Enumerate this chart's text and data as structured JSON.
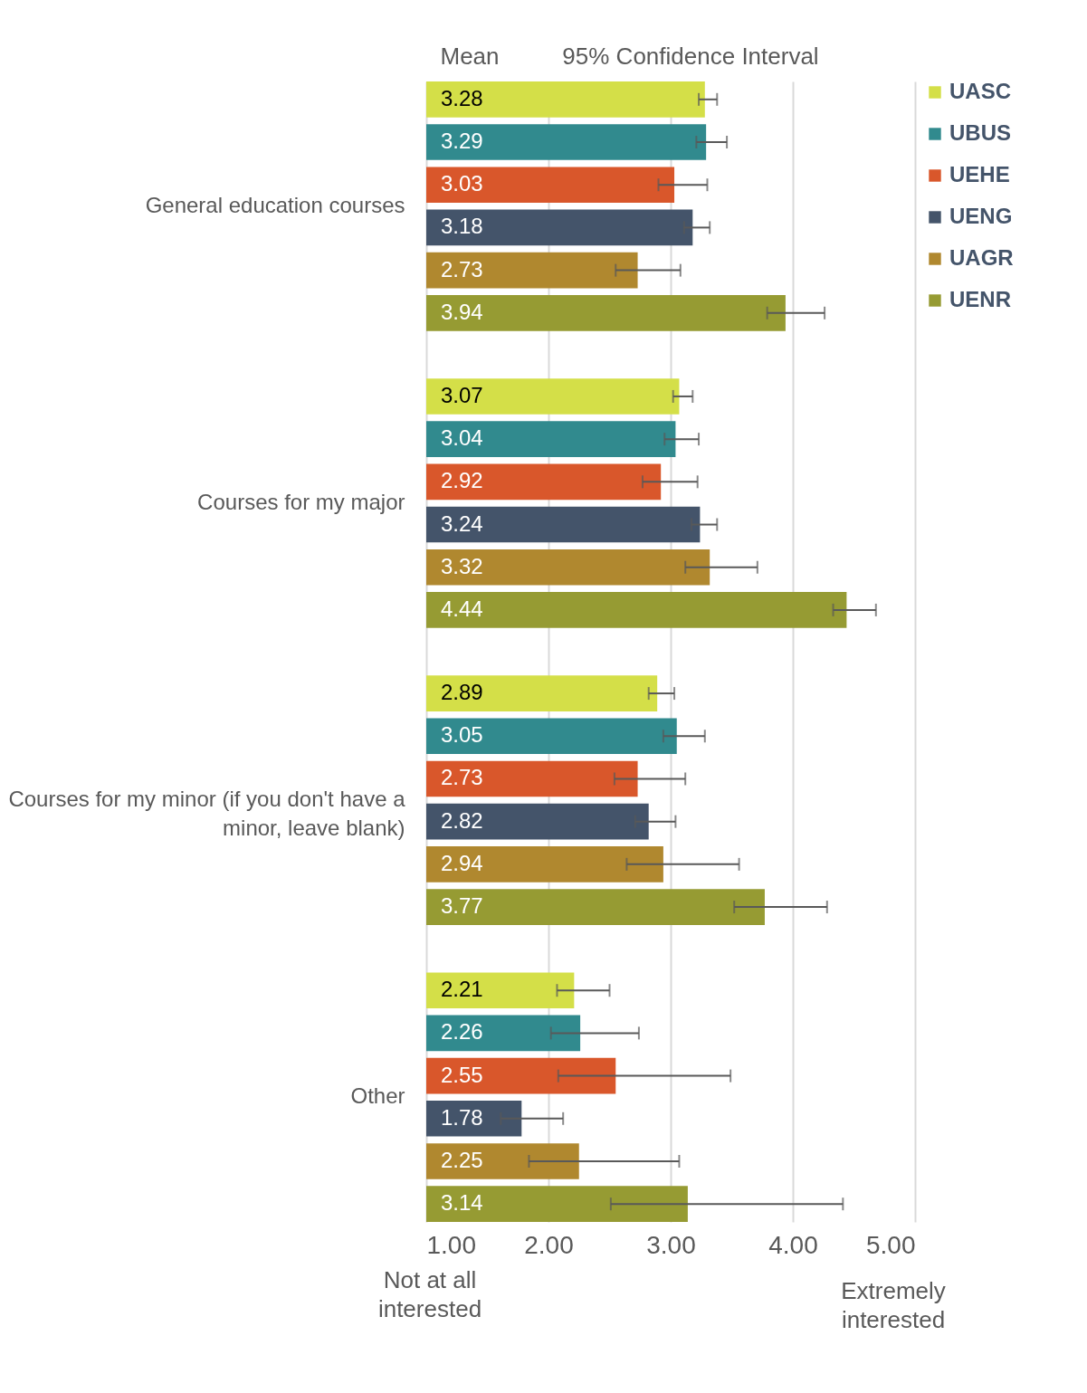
{
  "chart_data": {
    "type": "bar",
    "orientation": "horizontal",
    "annotations": [
      "Mean",
      "95% Confidence Interval",
      "Not at all interested",
      "Extremely interested"
    ],
    "categories": [
      "General education courses",
      "Courses for my major",
      "Courses for my minor (if you don't have a minor, leave blank)",
      "Other"
    ],
    "series": [
      {
        "name": "UASC",
        "color": "#d4df48",
        "values": [
          3.28,
          3.07,
          2.89,
          2.21
        ],
        "errors": [
          [
            3.23,
            3.38
          ],
          [
            3.02,
            3.18
          ],
          [
            2.82,
            3.03
          ],
          [
            2.07,
            2.5
          ]
        ]
      },
      {
        "name": "UBUS",
        "color": "#318a8e",
        "values": [
          3.29,
          3.04,
          3.05,
          2.26
        ],
        "errors": [
          [
            3.21,
            3.46
          ],
          [
            2.95,
            3.23
          ],
          [
            2.94,
            3.28
          ],
          [
            2.02,
            2.74
          ]
        ]
      },
      {
        "name": "UEHE",
        "color": "#d9572b",
        "values": [
          3.03,
          2.92,
          2.73,
          2.55
        ],
        "errors": [
          [
            2.9,
            3.3
          ],
          [
            2.77,
            3.22
          ],
          [
            2.54,
            3.12
          ],
          [
            2.08,
            3.49
          ]
        ]
      },
      {
        "name": "UENG",
        "color": "#44546a",
        "values": [
          3.18,
          3.24,
          2.82,
          1.78
        ],
        "errors": [
          [
            3.11,
            3.32
          ],
          [
            3.17,
            3.38
          ],
          [
            2.71,
            3.04
          ],
          [
            1.61,
            2.12
          ]
        ]
      },
      {
        "name": "UAGR",
        "color": "#b0882f",
        "values": [
          2.73,
          3.32,
          2.94,
          2.25
        ],
        "errors": [
          [
            2.55,
            3.08
          ],
          [
            3.12,
            3.71
          ],
          [
            2.64,
            3.56
          ],
          [
            1.84,
            3.07
          ]
        ]
      },
      {
        "name": "UENR",
        "color": "#969b33",
        "values": [
          3.94,
          4.44,
          3.77,
          3.14
        ],
        "errors": [
          [
            3.79,
            4.26
          ],
          [
            4.33,
            4.68
          ],
          [
            3.52,
            4.28
          ],
          [
            2.51,
            4.41
          ]
        ]
      }
    ],
    "xlim": [
      1,
      5
    ],
    "xticks": [
      {
        "value": 1,
        "label": "1.00"
      },
      {
        "value": 2,
        "label": "2.00"
      },
      {
        "value": 3,
        "label": "3.00"
      },
      {
        "value": 4,
        "label": "4.00"
      },
      {
        "value": 5,
        "label": "5.00"
      }
    ],
    "grid": "x",
    "legend": "top right",
    "data_labels": true
  }
}
